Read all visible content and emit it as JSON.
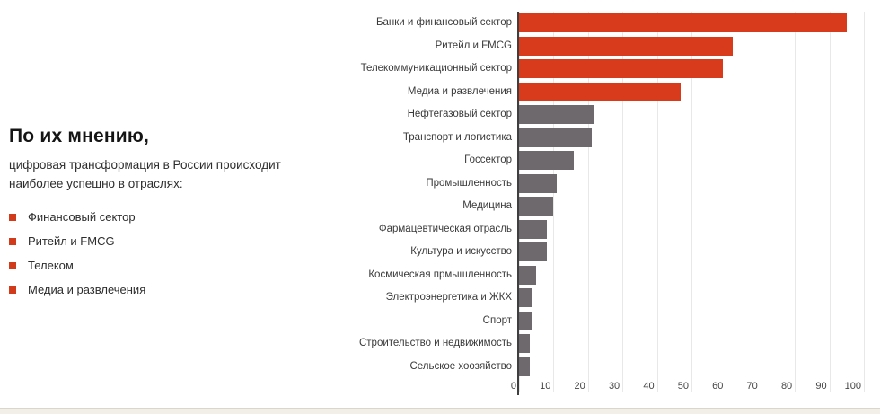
{
  "intro": {
    "title": "По их мнению,",
    "line1": "цифровая трансформация в России происходит",
    "line2": "наиболее успешно в отраслях:",
    "bullets": [
      "Финансовый сектор",
      "Ритейл и FMCG",
      "Телеком",
      "Медиа и развлечения"
    ]
  },
  "chart_data": {
    "type": "bar",
    "orientation": "horizontal",
    "title": "",
    "xlabel": "",
    "ylabel": "",
    "categories": [
      "Банки и финансовый сектор",
      "Ритейл и FMCG",
      "Телекоммуникационный сектор",
      "Медиа и развлечения",
      "Нефтегазовый сектор",
      "Транспорт и логистика",
      "Госсектор",
      "Промышленность",
      "Медицина",
      "Фармацевтическая отрасль",
      "Культура и искусство",
      "Космическая прмышленность",
      "Электроэнергетика и ЖКХ",
      "Спорт",
      "Строительство и недвижимость",
      "Сельское хоозяйство"
    ],
    "values": [
      95,
      62,
      59,
      47,
      22,
      21,
      16,
      11,
      10,
      8,
      8,
      5,
      4,
      4,
      3,
      3
    ],
    "highlighted_count": 4,
    "xlim": [
      0,
      100
    ],
    "ticks": [
      0,
      10,
      20,
      30,
      40,
      50,
      60,
      70,
      80,
      90,
      100
    ],
    "grid": true,
    "legend": false
  },
  "colors": {
    "highlight": "#d83b1c",
    "default_bar": "#6d696c",
    "bullet": "#d23a1c",
    "grid": "#e8e8e8",
    "axis": "#3f3f3f",
    "band": "#f1efe8"
  }
}
